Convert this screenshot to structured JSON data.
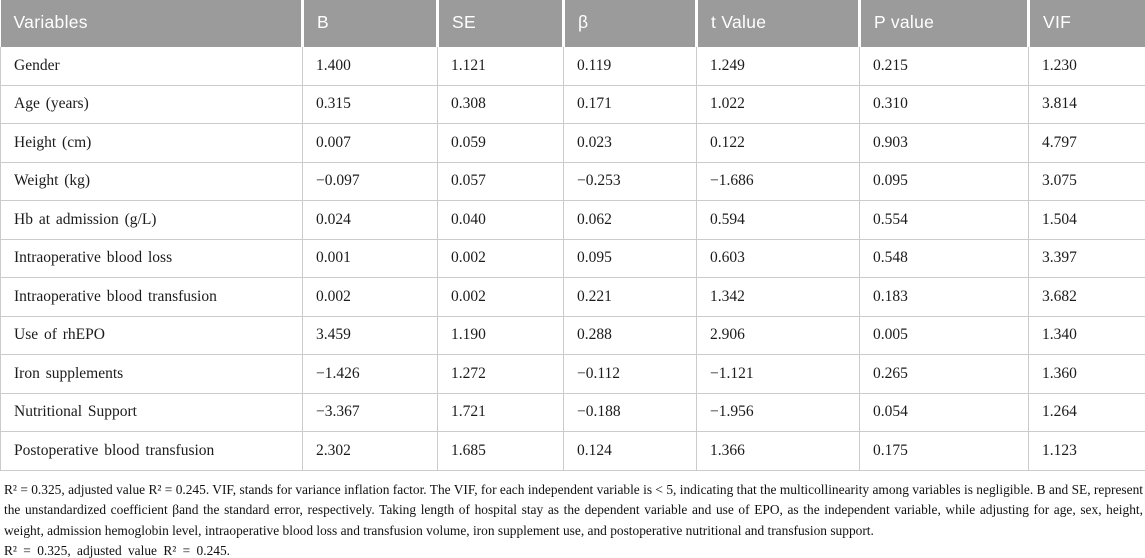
{
  "table": {
    "columns": [
      {
        "key": "variable",
        "label": "Variables"
      },
      {
        "key": "b",
        "label": "B"
      },
      {
        "key": "se",
        "label": "SE"
      },
      {
        "key": "beta",
        "label": "β"
      },
      {
        "key": "t",
        "label": "t Value"
      },
      {
        "key": "p",
        "label": "P value"
      },
      {
        "key": "vif",
        "label": "VIF"
      }
    ],
    "rows": [
      [
        "Gender",
        "1.400",
        "1.121",
        "0.119",
        "1.249",
        "0.215",
        "1.230"
      ],
      [
        "Age (years)",
        "0.315",
        "0.308",
        "0.171",
        "1.022",
        "0.310",
        "3.814"
      ],
      [
        "Height (cm)",
        "0.007",
        "0.059",
        "0.023",
        "0.122",
        "0.903",
        "4.797"
      ],
      [
        "Weight (kg)",
        "−0.097",
        "0.057",
        "−0.253",
        "−1.686",
        "0.095",
        "3.075"
      ],
      [
        "Hb at admission (g/L)",
        "0.024",
        "0.040",
        "0.062",
        "0.594",
        "0.554",
        "1.504"
      ],
      [
        "Intraoperative blood loss",
        "0.001",
        "0.002",
        "0.095",
        "0.603",
        "0.548",
        "3.397"
      ],
      [
        "Intraoperative blood transfusion",
        "0.002",
        "0.002",
        "0.221",
        "1.342",
        "0.183",
        "3.682"
      ],
      [
        "Use of rhEPO",
        "3.459",
        "1.190",
        "0.288",
        "2.906",
        "0.005",
        "1.340"
      ],
      [
        "Iron supplements",
        "−1.426",
        "1.272",
        "−0.112",
        "−1.121",
        "0.265",
        "1.360"
      ],
      [
        "Nutritional Support",
        "−3.367",
        "1.721",
        "−0.188",
        "−1.956",
        "0.054",
        "1.264"
      ],
      [
        "Postoperative blood transfusion",
        "2.302",
        "1.685",
        "0.124",
        "1.366",
        "0.175",
        "1.123"
      ]
    ]
  },
  "footnote": {
    "main": "R² = 0.325, adjusted value R² = 0.245. VIF, stands for variance inflation factor. The VIF, for each independent variable is < 5, indicating that the multicollinearity among variables is negligible. B and SE, represent the unstandardized coefficient βand the standard error, respectively. Taking length of hospital stay as the dependent variable and use of EPO, as the independent variable, while adjusting for age, sex, height, weight, admission hemoglobin level, intraoperative blood loss and transfusion volume, iron supplement use, and postoperative nutritional and transfusion support.",
    "last_line": "R² = 0.325, adjusted value R² = 0.245."
  },
  "colors": {
    "header_bg": "#9b9b9b",
    "header_text": "#ffffff",
    "cell_border": "#cbcbcb",
    "body_text": "#1b1b1b"
  }
}
